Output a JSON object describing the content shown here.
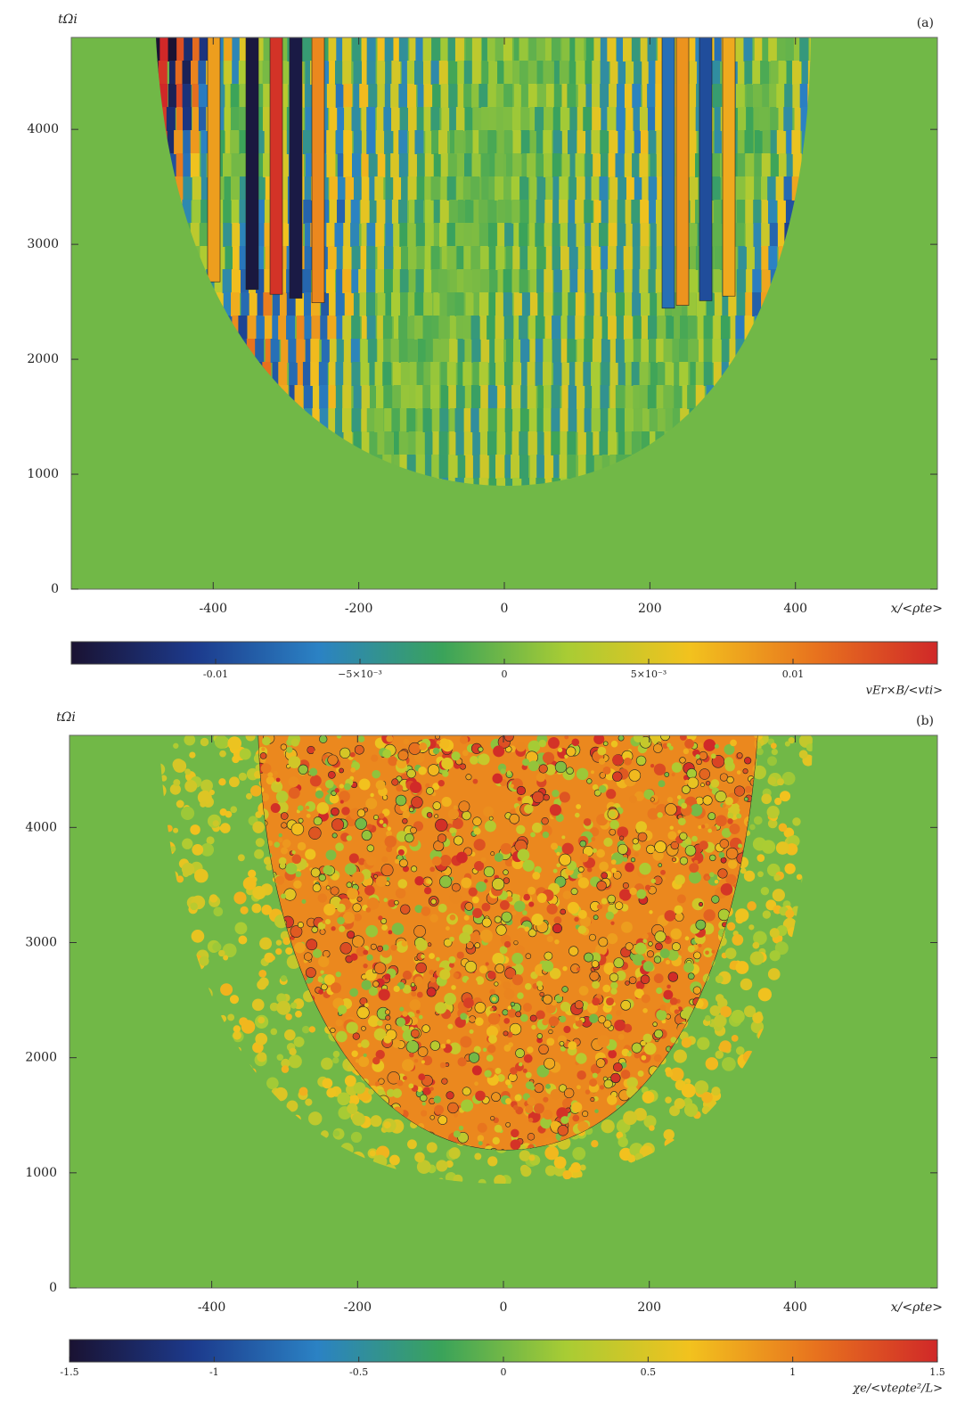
{
  "chart_data": [
    {
      "type": "heatmap",
      "panel_label": "(a)",
      "y_label": "tΩi",
      "x_label": "x/<ρte>",
      "xlim": [
        -595,
        595
      ],
      "xticks": [
        -400,
        -200,
        0,
        200,
        400
      ],
      "ylim": [
        0,
        4800
      ],
      "yticks": [
        0,
        1000,
        2000,
        3000,
        4000
      ],
      "colormap": [
        "#1a1232",
        "#1c3a8c",
        "#2b82c4",
        "#3aa35a",
        "#a8cc34",
        "#f2c21e",
        "#e8741e",
        "#d02828"
      ],
      "colorbar": {
        "label": "vEr×B/<vti>",
        "lim": [
          -0.015,
          0.015
        ],
        "ticks": [
          -0.01,
          {
            "value": -0.005,
            "label": "−5×10⁻³"
          },
          0,
          {
            "value": 0.005,
            "label": "5×10⁻³"
          },
          0.01
        ]
      }
    },
    {
      "type": "heatmap",
      "panel_label": "(b)",
      "y_label": "tΩi",
      "x_label": "x/<ρte>",
      "xlim": [
        -595,
        595
      ],
      "xticks": [
        -400,
        -200,
        0,
        200,
        400
      ],
      "ylim": [
        0,
        4800
      ],
      "yticks": [
        0,
        1000,
        2000,
        3000,
        4000
      ],
      "colormap": [
        "#1a1232",
        "#1c3a8c",
        "#2b82c4",
        "#3aa35a",
        "#a8cc34",
        "#f2c21e",
        "#e8741e",
        "#d02828"
      ],
      "colorbar": {
        "label": "χe/<vteρte²/L>",
        "lim": [
          -1.5,
          1.5
        ],
        "ticks": [
          -1.5,
          -1,
          -0.5,
          0,
          0.5,
          1,
          1.5
        ]
      }
    }
  ]
}
